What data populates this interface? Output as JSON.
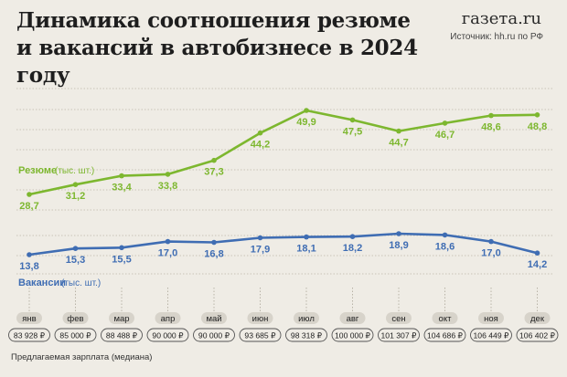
{
  "header": {
    "title_line1": "Динамика соотношения резюме",
    "title_line2": "и вакансий в автобизнесе в 2024 году",
    "logo": "газета.ru",
    "source": "Источник: hh.ru по РФ"
  },
  "footnote": "Предлагаемая зарплата (медиана)",
  "colors": {
    "resume": "#7db72f",
    "vacancy": "#3f6db3",
    "grid": "#c9c4b8",
    "month_pill": "#d7d3ca",
    "salary_border": "#555555"
  },
  "chart_data": {
    "type": "line",
    "categories": [
      "янв",
      "фев",
      "мар",
      "апр",
      "май",
      "июн",
      "июл",
      "авг",
      "сен",
      "окт",
      "ноя",
      "дек"
    ],
    "series": [
      {
        "name": "Резюме",
        "unit": "(тыс. шт.)",
        "values": [
          28.7,
          31.2,
          33.4,
          33.8,
          37.3,
          44.2,
          49.9,
          47.5,
          44.7,
          46.7,
          48.6,
          48.8
        ],
        "labels": [
          "28,7",
          "31,2",
          "33,4",
          "33,8",
          "37,3",
          "44,2",
          "49,9",
          "47,5",
          "44,7",
          "46,7",
          "48,6",
          "48,8"
        ]
      },
      {
        "name": "Вакансии",
        "unit": "(тыс. шт.)",
        "values": [
          13.8,
          15.3,
          15.5,
          17.0,
          16.8,
          17.9,
          18.1,
          18.2,
          18.9,
          18.6,
          17.0,
          14.2
        ],
        "labels": [
          "13,8",
          "15,3",
          "15,5",
          "17,0",
          "16,8",
          "17,9",
          "18,1",
          "18,2",
          "18,9",
          "18,6",
          "17,0",
          "14,2"
        ]
      }
    ],
    "salary": [
      "83 928 ₽",
      "85 000 ₽",
      "88 488 ₽",
      "90 000 ₽",
      "90 000 ₽",
      "93 685 ₽",
      "98 318 ₽",
      "100 000 ₽",
      "101 307 ₽",
      "104 686 ₽",
      "106 449 ₽",
      "106 402 ₽"
    ],
    "grid": true
  }
}
